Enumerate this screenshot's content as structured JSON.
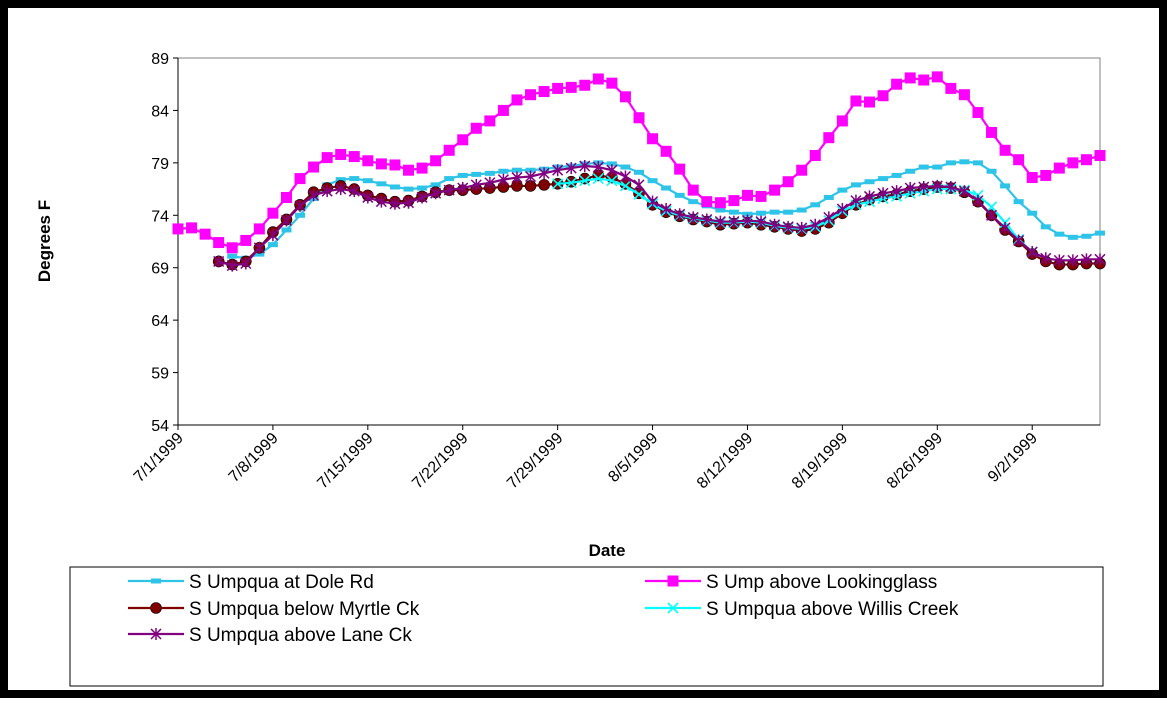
{
  "chart_data": {
    "type": "line",
    "xlabel": "Date",
    "ylabel": "Degrees F",
    "categories": [
      "7/1/1999",
      null,
      null,
      null,
      null,
      null,
      null,
      "7/8/1999",
      null,
      null,
      null,
      null,
      null,
      null,
      "7/15/1999",
      null,
      null,
      null,
      null,
      null,
      null,
      "7/22/1999",
      null,
      null,
      null,
      null,
      null,
      null,
      "7/29/1999",
      null,
      null,
      null,
      null,
      null,
      null,
      "8/5/1999",
      null,
      null,
      null,
      null,
      null,
      null,
      "8/12/1999",
      null,
      null,
      null,
      null,
      null,
      null,
      "8/19/1999",
      null,
      null,
      null,
      null,
      null,
      null,
      "8/26/1999",
      null,
      null,
      null,
      null,
      null,
      null,
      "9/2/1999",
      null,
      null,
      null,
      null,
      null
    ],
    "ylim": [
      54,
      89
    ],
    "yticks": [
      54,
      59,
      64,
      69,
      74,
      79,
      84,
      89
    ],
    "grid": false,
    "series": [
      {
        "name": "S Umpqua at Dole Rd",
        "color": "#2EC4E8",
        "marker": "dash",
        "values": [
          null,
          null,
          null,
          null,
          70.1,
          69.9,
          70.3,
          71.2,
          72.6,
          74.0,
          75.6,
          76.9,
          77.4,
          77.5,
          77.3,
          77.0,
          76.7,
          76.5,
          76.6,
          76.9,
          77.5,
          77.8,
          77.9,
          78.0,
          78.2,
          78.3,
          78.3,
          78.4,
          78.6,
          78.7,
          78.9,
          79.0,
          78.9,
          78.6,
          78.1,
          77.3,
          76.6,
          75.9,
          75.3,
          74.9,
          74.5,
          74.3,
          74.1,
          74.2,
          74.3,
          74.3,
          74.5,
          75.0,
          75.7,
          76.4,
          76.9,
          77.2,
          77.5,
          77.8,
          78.2,
          78.6,
          78.6,
          79.0,
          79.1,
          79.0,
          78.2,
          76.8,
          75.3,
          74.2,
          72.9,
          72.2,
          71.9,
          72.0,
          72.3
        ]
      },
      {
        "name": "S Ump above Lookingglass",
        "color": "#FF00FF",
        "marker": "square",
        "values": [
          72.7,
          72.8,
          72.2,
          71.4,
          70.9,
          71.6,
          72.7,
          74.2,
          75.7,
          77.5,
          78.6,
          79.5,
          79.8,
          79.6,
          79.2,
          78.9,
          78.8,
          78.3,
          78.5,
          79.2,
          80.2,
          81.2,
          82.3,
          83.0,
          84.0,
          85.0,
          85.5,
          85.8,
          86.1,
          86.2,
          86.4,
          87.0,
          86.6,
          85.3,
          83.3,
          81.3,
          80.1,
          78.4,
          76.4,
          75.3,
          75.2,
          75.4,
          75.9,
          75.8,
          76.4,
          77.2,
          78.3,
          79.7,
          81.4,
          83.0,
          84.9,
          84.8,
          85.4,
          86.5,
          87.1,
          86.9,
          87.2,
          86.1,
          85.5,
          83.8,
          81.9,
          80.2,
          79.3,
          77.6,
          77.8,
          78.5,
          79.0,
          79.3,
          79.7
        ]
      },
      {
        "name": "S Umpqua below Myrtle Ck",
        "color": "#800000",
        "marker": "circle",
        "values": [
          null,
          null,
          null,
          69.6,
          69.3,
          69.6,
          70.9,
          72.4,
          73.6,
          75.0,
          76.2,
          76.6,
          76.8,
          76.5,
          75.9,
          75.6,
          75.3,
          75.4,
          75.8,
          76.2,
          76.4,
          76.4,
          76.5,
          76.6,
          76.7,
          76.8,
          76.8,
          76.9,
          77.0,
          77.2,
          77.5,
          77.8,
          77.6,
          77.0,
          76.1,
          75.0,
          74.3,
          73.9,
          73.6,
          73.4,
          73.1,
          73.2,
          73.3,
          73.1,
          72.9,
          72.7,
          72.5,
          72.7,
          73.3,
          74.2,
          75.0,
          75.5,
          75.8,
          76.0,
          76.3,
          76.5,
          76.7,
          76.6,
          76.2,
          75.3,
          74.0,
          72.6,
          71.5,
          70.3,
          69.6,
          69.3,
          69.3,
          69.4,
          69.4
        ]
      },
      {
        "name": "S Umpqua above Willis Creek",
        "color": "#00FFFF",
        "marker": "x",
        "values": [
          null,
          null,
          null,
          null,
          null,
          null,
          null,
          null,
          null,
          null,
          null,
          null,
          null,
          null,
          null,
          null,
          null,
          null,
          null,
          null,
          null,
          null,
          null,
          null,
          null,
          null,
          null,
          null,
          77.0,
          77.1,
          77.3,
          77.5,
          77.3,
          76.8,
          76.0,
          75.1,
          74.4,
          74.0,
          73.7,
          73.5,
          73.3,
          73.3,
          73.4,
          73.3,
          73.0,
          72.8,
          72.7,
          72.9,
          73.5,
          74.4,
          75.0,
          75.3,
          75.6,
          75.8,
          76.1,
          76.3,
          76.5,
          76.5,
          76.4,
          75.9,
          74.8,
          73.3,
          71.7,
          70.5,
          null,
          null,
          null,
          null,
          null
        ]
      },
      {
        "name": "S Umpqua above Lane Ck",
        "color": "#800080",
        "marker": "asterisk",
        "values": [
          null,
          null,
          null,
          69.6,
          69.2,
          69.4,
          70.9,
          72.1,
          73.5,
          74.9,
          75.9,
          76.3,
          76.5,
          76.3,
          75.7,
          75.3,
          75.1,
          75.2,
          75.7,
          76.1,
          76.4,
          76.6,
          76.9,
          77.1,
          77.4,
          77.6,
          77.7,
          78.0,
          78.3,
          78.5,
          78.7,
          78.6,
          78.3,
          77.7,
          76.9,
          75.3,
          74.6,
          74.1,
          73.8,
          73.6,
          73.4,
          73.4,
          73.5,
          73.4,
          73.1,
          72.9,
          72.8,
          73.1,
          73.8,
          74.6,
          75.4,
          75.8,
          76.1,
          76.3,
          76.6,
          76.7,
          76.8,
          76.7,
          76.3,
          75.4,
          74.0,
          72.8,
          71.6,
          70.5,
          69.9,
          69.7,
          69.7,
          69.8,
          69.8
        ]
      }
    ]
  }
}
